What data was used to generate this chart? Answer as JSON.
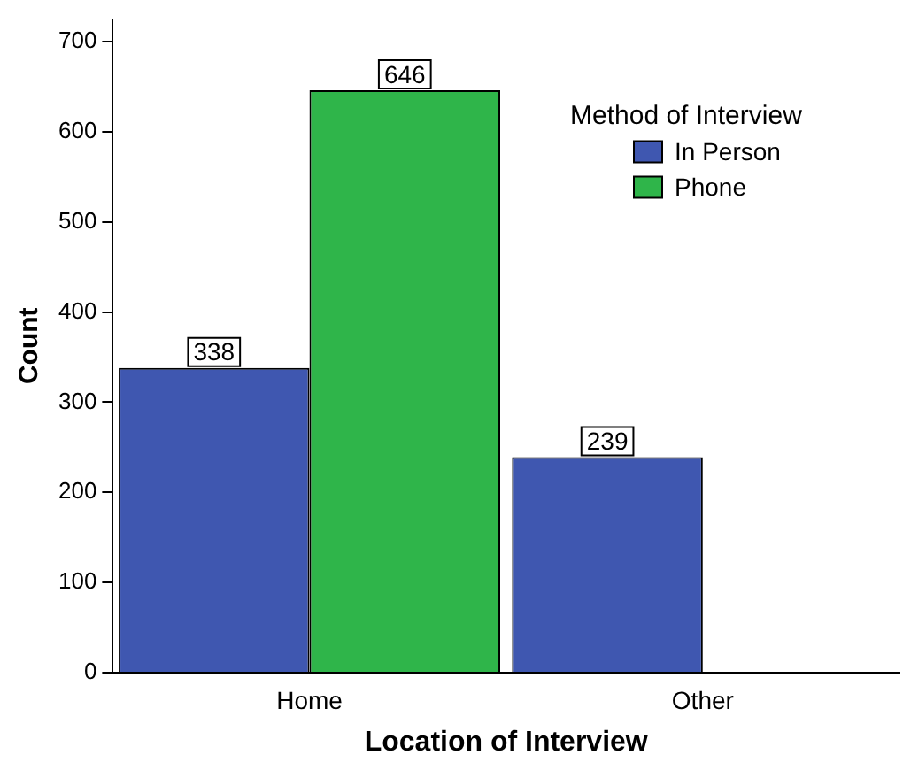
{
  "chart_data": {
    "type": "bar",
    "xlabel": "Location of Interview",
    "ylabel": "Count",
    "legend_title": "Method of Interview",
    "categories": [
      "Home",
      "Other"
    ],
    "series": [
      {
        "name": "In Person",
        "color": "#3f57b0",
        "values": [
          338,
          239
        ]
      },
      {
        "name": "Phone",
        "color": "#2fb54a",
        "values": [
          646,
          null
        ]
      }
    ],
    "ylim": [
      0,
      725
    ],
    "yticks": [
      0,
      100,
      200,
      300,
      400,
      500,
      600,
      700
    ],
    "grid": false,
    "legend": "top right",
    "data_labels": true
  }
}
